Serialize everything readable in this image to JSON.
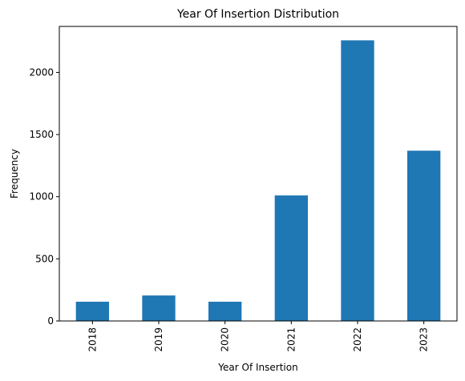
{
  "chart_data": {
    "type": "bar",
    "title": "Year Of Insertion Distribution",
    "xlabel": "Year Of Insertion",
    "ylabel": "Frequency",
    "categories": [
      "2018",
      "2019",
      "2020",
      "2021",
      "2022",
      "2023"
    ],
    "values": [
      155,
      205,
      155,
      1010,
      2258,
      1370
    ],
    "ylim": [
      0,
      2370
    ],
    "yticks": [
      0,
      500,
      1000,
      1500,
      2000
    ],
    "bar_color": "#1f77b4",
    "grid": false,
    "legend": "none"
  }
}
